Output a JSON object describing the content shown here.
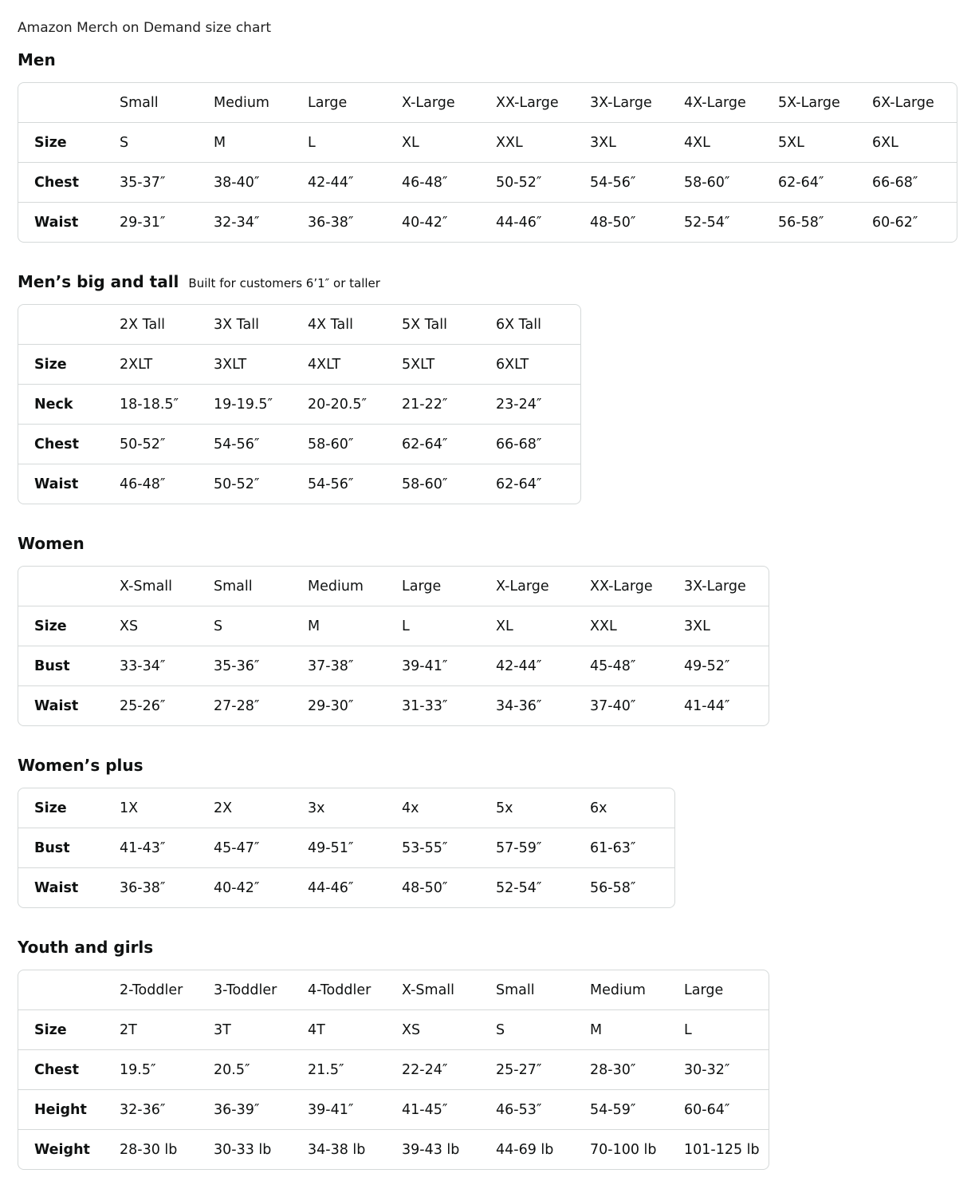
{
  "title": "Amazon Merch on Demand size chart",
  "sections": [
    {
      "title": "Men",
      "note": "",
      "rows": [
        [
          "",
          "Small",
          "Medium",
          "Large",
          "X-Large",
          "XX-Large",
          "3X-Large",
          "4X-Large",
          "5X-Large",
          "6X-Large"
        ],
        [
          "Size",
          "S",
          "M",
          "L",
          "XL",
          "XXL",
          "3XL",
          "4XL",
          "5XL",
          "6XL"
        ],
        [
          "Chest",
          "35-37″",
          "38-40″",
          "42-44″",
          "46-48″",
          "50-52″",
          "54-56″",
          "58-60″",
          "62-64″",
          "66-68″"
        ],
        [
          "Waist",
          "29-31″",
          "32-34″",
          "36-38″",
          "40-42″",
          "44-46″",
          "48-50″",
          "52-54″",
          "56-58″",
          "60-62″"
        ]
      ]
    },
    {
      "title": "Men’s big and tall",
      "note": "Built for customers 6’1″ or taller",
      "rows": [
        [
          "",
          "2X Tall",
          "3X Tall",
          "4X Tall",
          "5X Tall",
          "6X Tall"
        ],
        [
          "Size",
          "2XLT",
          "3XLT",
          "4XLT",
          "5XLT",
          "6XLT"
        ],
        [
          "Neck",
          "18-18.5″",
          "19-19.5″",
          "20-20.5″",
          "21-22″",
          "23-24″"
        ],
        [
          "Chest",
          "50-52″",
          "54-56″",
          "58-60″",
          "62-64″",
          "66-68″"
        ],
        [
          "Waist",
          "46-48″",
          "50-52″",
          "54-56″",
          "58-60″",
          "62-64″"
        ]
      ]
    },
    {
      "title": "Women",
      "note": "",
      "rows": [
        [
          "",
          "X-Small",
          "Small",
          "Medium",
          "Large",
          "X-Large",
          "XX-Large",
          "3X-Large"
        ],
        [
          "Size",
          "XS",
          "S",
          "M",
          "L",
          "XL",
          "XXL",
          "3XL"
        ],
        [
          "Bust",
          "33-34″",
          "35-36″",
          "37-38″",
          "39-41″",
          "42-44″",
          "45-48″",
          "49-52″"
        ],
        [
          "Waist",
          "25-26″",
          "27-28″",
          "29-30″",
          "31-33″",
          "34-36″",
          "37-40″",
          "41-44″"
        ]
      ]
    },
    {
      "title": "Women’s plus",
      "note": "",
      "rows": [
        [
          "Size",
          "1X",
          "2X",
          "3x",
          "4x",
          "5x",
          "6x"
        ],
        [
          "Bust",
          "41-43″",
          "45-47″",
          "49-51″",
          "53-55″",
          "57-59″",
          "61-63″"
        ],
        [
          "Waist",
          "36-38″",
          "40-42″",
          "44-46″",
          "48-50″",
          "52-54″",
          "56-58″"
        ]
      ]
    },
    {
      "title": "Youth and girls",
      "note": "",
      "rows": [
        [
          "",
          "2-Toddler",
          "3-Toddler",
          "4-Toddler",
          "X-Small",
          "Small",
          "Medium",
          "Large"
        ],
        [
          "Size",
          "2T",
          "3T",
          "4T",
          "XS",
          "S",
          "M",
          "L"
        ],
        [
          "Chest",
          "19.5″",
          "20.5″",
          "21.5″",
          "22-24″",
          "25-27″",
          "28-30″",
          "30-32″"
        ],
        [
          "Height",
          "32-36″",
          "36-39″",
          "39-41″",
          "41-45″",
          "46-53″",
          "54-59″",
          "60-64″"
        ],
        [
          "Weight",
          "28-30 lb",
          "30-33 lb",
          "34-38 lb",
          "39-43 lb",
          "44-69 lb",
          "70-100 lb",
          "101-125 lb"
        ]
      ]
    }
  ]
}
